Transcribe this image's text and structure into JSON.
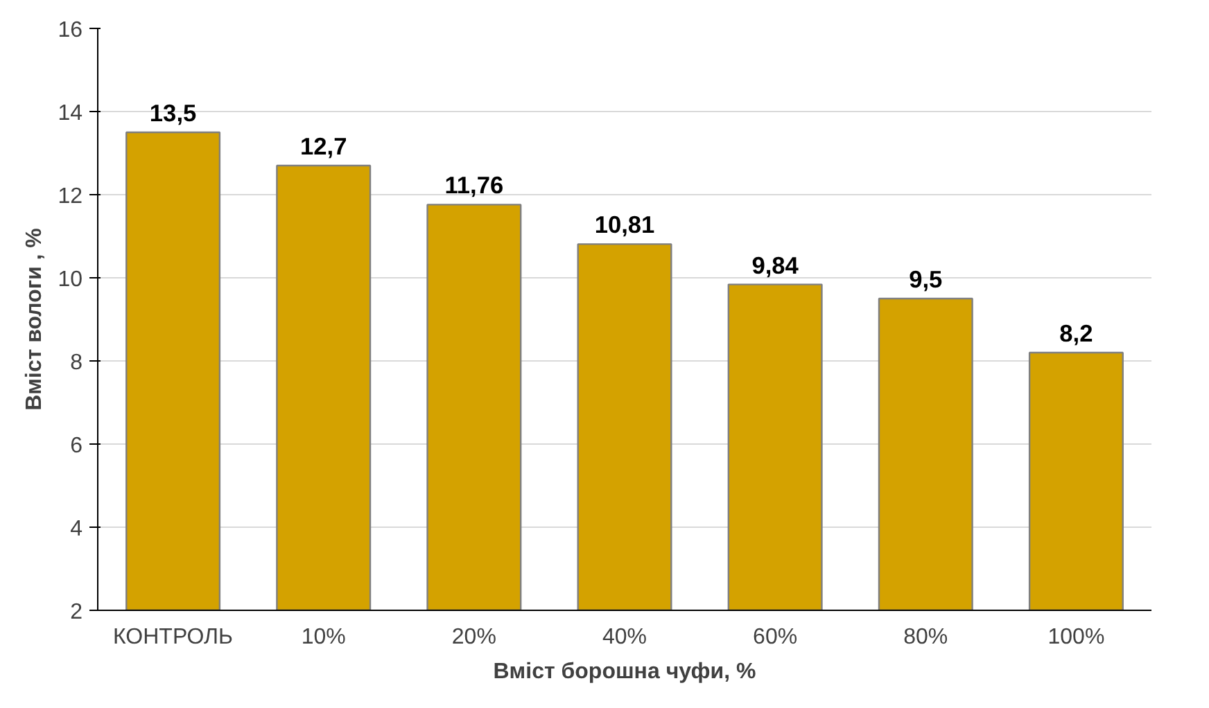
{
  "chart_data": {
    "type": "bar",
    "xlabel": "Вміст борошна чуфи, %",
    "ylabel": "Вміст вологи , %",
    "categories": [
      "КОНТРОЛЬ",
      "10%",
      "20%",
      "40%",
      "60%",
      "80%",
      "100%"
    ],
    "values": [
      13.5,
      12.7,
      11.76,
      10.81,
      9.84,
      9.5,
      8.2
    ],
    "value_labels": [
      "13,5",
      "12,7",
      "11,76",
      "10,81",
      "9,84",
      "9,5",
      "8,2"
    ],
    "color": "#d4a200",
    "ylim": [
      2,
      16
    ],
    "yticks": [
      2,
      4,
      6,
      8,
      10,
      12,
      14,
      16
    ],
    "grid": "y"
  }
}
